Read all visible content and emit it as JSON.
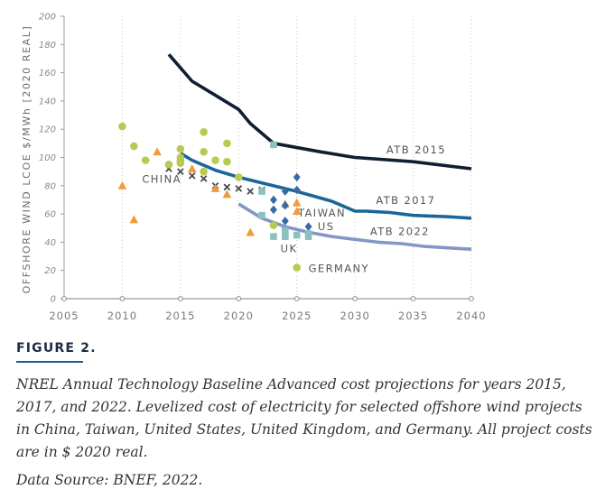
{
  "chart_data": {
    "type": "line",
    "title": "",
    "xlabel": "",
    "ylabel": "OFFSHORE WIND LCOE $/MWh [2020 REAL]",
    "xlim": [
      2005,
      2040
    ],
    "ylim": [
      0,
      200
    ],
    "x_ticks": [
      2005,
      2010,
      2015,
      2020,
      2025,
      2030,
      2035,
      2040
    ],
    "y_ticks": [
      0,
      20,
      40,
      60,
      80,
      100,
      120,
      140,
      160,
      180,
      200
    ],
    "grid": "vertical-dotted",
    "series": [
      {
        "name": "ATB 2015",
        "color": "#0f1e30",
        "points": [
          [
            2014,
            173
          ],
          [
            2016,
            154
          ],
          [
            2018,
            144
          ],
          [
            2020,
            134
          ],
          [
            2021,
            124
          ],
          [
            2023,
            110
          ],
          [
            2027,
            104
          ],
          [
            2030,
            100
          ],
          [
            2035,
            97
          ],
          [
            2040,
            92
          ]
        ]
      },
      {
        "name": "ATB 2017",
        "color": "#1b6699",
        "points": [
          [
            2015,
            103
          ],
          [
            2016,
            98
          ],
          [
            2018,
            91
          ],
          [
            2020,
            86
          ],
          [
            2022,
            82
          ],
          [
            2025,
            76
          ],
          [
            2028,
            69
          ],
          [
            2030,
            62
          ],
          [
            2031,
            62
          ],
          [
            2033,
            61
          ],
          [
            2035,
            59
          ],
          [
            2038,
            58
          ],
          [
            2040,
            57
          ]
        ]
      },
      {
        "name": "ATB 2022",
        "color": "#8297c4",
        "points": [
          [
            2020,
            67
          ],
          [
            2022,
            57
          ],
          [
            2024,
            51
          ],
          [
            2026,
            47
          ],
          [
            2028,
            44
          ],
          [
            2030,
            42
          ],
          [
            2032,
            40
          ],
          [
            2034,
            39
          ],
          [
            2036,
            37
          ],
          [
            2038,
            36
          ],
          [
            2040,
            35
          ]
        ]
      }
    ],
    "projects": [
      {
        "name": "CHINA",
        "marker": "x",
        "color": "#4a4a4a",
        "points": [
          [
            2014,
            92
          ],
          [
            2015,
            90
          ],
          [
            2016,
            87
          ],
          [
            2017,
            85
          ],
          [
            2018,
            80
          ],
          [
            2019,
            79
          ],
          [
            2020,
            78
          ],
          [
            2021,
            76
          ],
          [
            2022,
            77
          ]
        ]
      },
      {
        "name": "TAIWAN",
        "marker": "triangle",
        "color": "#f39a3c",
        "points": [
          [
            2010,
            80
          ],
          [
            2011,
            56
          ],
          [
            2013,
            104
          ],
          [
            2015,
            100
          ],
          [
            2016,
            92
          ],
          [
            2018,
            78
          ],
          [
            2019,
            74
          ],
          [
            2021,
            47
          ],
          [
            2024,
            67
          ],
          [
            2025,
            68
          ],
          [
            2025,
            62
          ]
        ]
      },
      {
        "name": "US",
        "marker": "diamond",
        "color": "#3a6aa3",
        "points": [
          [
            2023,
            70
          ],
          [
            2023,
            63
          ],
          [
            2024,
            76
          ],
          [
            2024,
            66
          ],
          [
            2024,
            55
          ],
          [
            2025,
            86
          ],
          [
            2025,
            77
          ],
          [
            2026,
            51
          ]
        ]
      },
      {
        "name": "UK",
        "marker": "square",
        "color": "#8dc0c0",
        "points": [
          [
            2023,
            109
          ],
          [
            2022,
            76
          ],
          [
            2022,
            59
          ],
          [
            2023,
            44
          ],
          [
            2024,
            48
          ],
          [
            2024,
            44
          ],
          [
            2025,
            45
          ],
          [
            2026,
            44
          ],
          [
            2026,
            46
          ]
        ]
      },
      {
        "name": "GERMANY",
        "marker": "circle",
        "color": "#b7ca52",
        "points": [
          [
            2010,
            122
          ],
          [
            2011,
            108
          ],
          [
            2012,
            98
          ],
          [
            2014,
            95
          ],
          [
            2015,
            106
          ],
          [
            2015,
            100
          ],
          [
            2015,
            96
          ],
          [
            2017,
            118
          ],
          [
            2017,
            104
          ],
          [
            2017,
            90
          ],
          [
            2018,
            98
          ],
          [
            2019,
            110
          ],
          [
            2019,
            97
          ],
          [
            2020,
            86
          ],
          [
            2023,
            52
          ],
          [
            2025,
            22
          ]
        ]
      }
    ],
    "annotations": [
      {
        "text": "ATB 2015",
        "x": 2032.7,
        "y": 103
      },
      {
        "text": "ATB 2017",
        "x": 2031.8,
        "y": 67
      },
      {
        "text": "ATB 2022",
        "x": 2031.3,
        "y": 45
      },
      {
        "text": "CHINA",
        "x": 2011.7,
        "y": 82
      },
      {
        "text": "TAIWAN",
        "x": 2025.1,
        "y": 58
      },
      {
        "text": "US",
        "x": 2026.8,
        "y": 48.5
      },
      {
        "text": "UK",
        "x": 2023.6,
        "y": 33
      },
      {
        "text": "GERMANY",
        "x": 2026.0,
        "y": 19
      }
    ]
  },
  "figure": {
    "label": "FIGURE 2.",
    "caption": "NREL Annual Technology Baseline Advanced cost projections for years 2015, 2017, and 2022. Levelized cost of electricity for selected offshore wind projects in China, Taiwan, United States, United Kingdom, and Germany. All project costs are in $ 2020 real.",
    "source": "Data Source: BNEF, 2022."
  }
}
